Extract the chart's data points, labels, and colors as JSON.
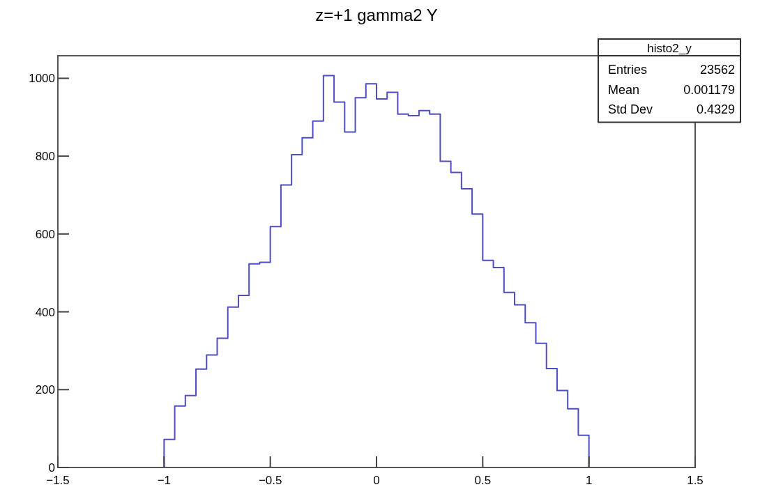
{
  "chart_data": {
    "type": "histogram",
    "title": "z=+1 gamma2 Y",
    "bins": [
      -1,
      -0.95,
      -0.9,
      -0.85,
      -0.8,
      -0.75,
      -0.7,
      -0.65,
      -0.6,
      -0.55,
      -0.5,
      -0.45,
      -0.4,
      -0.35,
      -0.3,
      -0.25,
      -0.2,
      -0.15,
      -0.1,
      -0.05,
      0,
      0.05,
      0.1,
      0.15,
      0.2,
      0.25,
      0.3,
      0.35,
      0.4,
      0.45,
      0.5,
      0.55,
      0.6,
      0.65,
      0.7,
      0.75,
      0.8,
      0.85,
      0.9,
      0.95,
      1
    ],
    "values": [
      72,
      158,
      185,
      253,
      289,
      332,
      412,
      442,
      523,
      527,
      619,
      726,
      804,
      847,
      890,
      1007,
      939,
      862,
      950,
      986,
      947,
      964,
      908,
      904,
      917,
      908,
      787,
      758,
      716,
      651,
      532,
      514,
      450,
      418,
      372,
      319,
      254,
      198,
      151,
      83
    ],
    "color": "#4d4dc4",
    "xlim": [
      -1.5,
      1.5
    ],
    "xticks": [
      {
        "value": -1.5,
        "label": "−1.5"
      },
      {
        "value": -1,
        "label": "−1"
      },
      {
        "value": -0.5,
        "label": "−0.5"
      },
      0,
      0.5,
      1,
      1.5
    ],
    "ylim": [
      0,
      1058
    ],
    "yticks": [
      0,
      200,
      400,
      600,
      800,
      1000
    ],
    "annotations": [
      "histo2_y",
      "Entries",
      "23562",
      "Mean",
      "0.001179",
      "Std Dev",
      "0.4329"
    ]
  }
}
